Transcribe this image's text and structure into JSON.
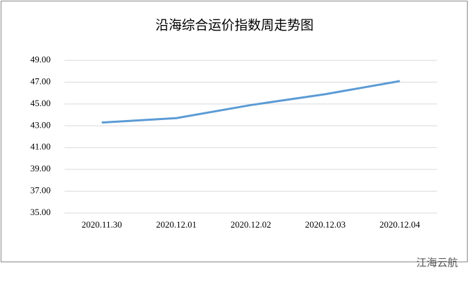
{
  "chart_data": {
    "type": "line",
    "title": "沿海综合运价指数周走势图",
    "categories": [
      "2020.11.30",
      "2020.12.01",
      "2020.12.02",
      "2020.12.03",
      "2020.12.04"
    ],
    "series": [
      {
        "name": "沿海综合运价指数",
        "color": "#5b9bd5",
        "values": [
          43.3,
          43.7,
          44.9,
          45.9,
          47.1
        ]
      }
    ],
    "ylim": [
      35,
      49
    ],
    "yticks": [
      {
        "value": 35,
        "label": "35.00"
      },
      {
        "value": 37,
        "label": "37.00"
      },
      {
        "value": 39,
        "label": "39.00"
      },
      {
        "value": 41,
        "label": "41.00"
      },
      {
        "value": 43,
        "label": "43.00"
      },
      {
        "value": 45,
        "label": "45.00"
      },
      {
        "value": 47,
        "label": "47.00"
      },
      {
        "value": 49,
        "label": "49.00"
      }
    ],
    "grid": true
  },
  "watermark": "江海云航"
}
